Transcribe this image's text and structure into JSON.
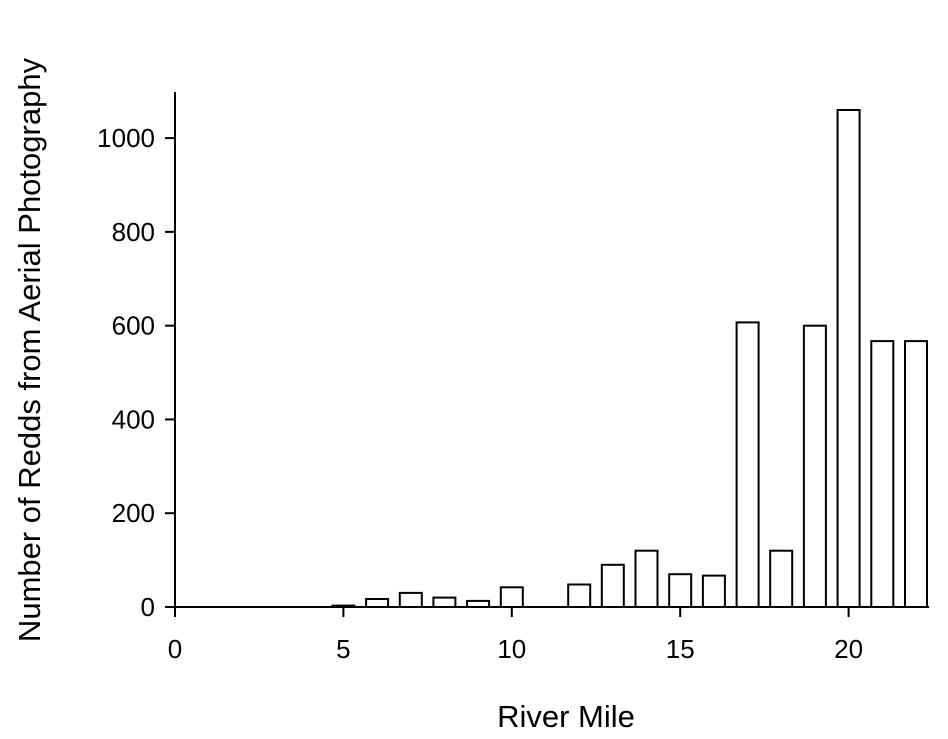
{
  "chart_data": {
    "type": "bar",
    "title": "",
    "xlabel": "River Mile",
    "ylabel": "Number of Redds from Aerial Photography",
    "x": [
      5,
      6,
      7,
      8,
      9,
      10,
      12,
      13,
      14,
      15,
      16,
      17,
      18,
      19,
      20,
      21,
      22
    ],
    "values": [
      3,
      17,
      30,
      20,
      13,
      42,
      48,
      90,
      120,
      70,
      67,
      607,
      120,
      600,
      1060,
      567,
      567
    ],
    "xlim": [
      0,
      22.5
    ],
    "ylim": [
      0,
      1100
    ],
    "xticks": [
      0,
      5,
      10,
      15,
      20
    ],
    "yticks": [
      0,
      200,
      400,
      600,
      800,
      1000
    ],
    "xtick_labels": [
      "0",
      "5",
      "10",
      "15",
      "20"
    ],
    "ytick_labels": [
      "0",
      "200",
      "400",
      "600",
      "800",
      "1000"
    ],
    "grid": false,
    "legend": "none",
    "bar_fill": "#ffffff",
    "bar_stroke": "#000000"
  }
}
